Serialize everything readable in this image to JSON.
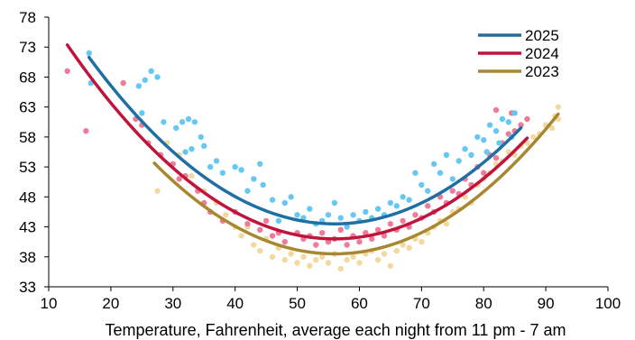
{
  "chart_data": {
    "type": "scatter",
    "title": "",
    "xlabel": "Temperature, Fahrenheit, average each night from 11 pm - 7 am",
    "ylabel": "",
    "xlim": [
      10,
      100
    ],
    "ylim": [
      33,
      78
    ],
    "x_ticks": [
      10,
      20,
      30,
      40,
      50,
      60,
      70,
      80,
      90,
      100
    ],
    "y_ticks": [
      33,
      38,
      43,
      48,
      53,
      58,
      63,
      68,
      73,
      78
    ],
    "grid": false,
    "legend_position": "top-right",
    "series": [
      {
        "name": "2025",
        "color": "#1f6fa3",
        "point_color": "#66c8f2",
        "fit": {
          "model": "quadratic",
          "a": 0.0178,
          "vertex_x": 56,
          "vertex_y": 43.5,
          "x_range": [
            16.5,
            86
          ]
        },
        "points": [
          [
            16.5,
            72
          ],
          [
            16.8,
            67
          ],
          [
            24.5,
            66.5
          ],
          [
            25.5,
            67.5
          ],
          [
            26.5,
            69
          ],
          [
            27.5,
            68
          ],
          [
            25,
            62
          ],
          [
            28.5,
            60.5
          ],
          [
            30.5,
            59.5
          ],
          [
            31.5,
            60.5
          ],
          [
            32.5,
            61
          ],
          [
            33.5,
            60.5
          ],
          [
            34.5,
            58
          ],
          [
            32,
            55.5
          ],
          [
            33,
            56
          ],
          [
            35,
            56.5
          ],
          [
            36,
            53
          ],
          [
            37,
            54
          ],
          [
            38,
            52
          ],
          [
            40,
            53
          ],
          [
            41,
            52.5
          ],
          [
            42,
            49
          ],
          [
            43,
            51
          ],
          [
            44,
            53.5
          ],
          [
            44.5,
            50
          ],
          [
            46,
            47.5
          ],
          [
            47,
            44
          ],
          [
            48,
            47
          ],
          [
            49,
            48
          ],
          [
            50,
            45
          ],
          [
            51,
            44.5
          ],
          [
            52,
            46
          ],
          [
            53,
            43.5
          ],
          [
            54,
            44
          ],
          [
            55,
            45
          ],
          [
            56,
            47
          ],
          [
            57,
            44.5
          ],
          [
            58,
            43
          ],
          [
            59,
            45
          ],
          [
            60,
            44
          ],
          [
            61,
            45.5
          ],
          [
            62,
            44.5
          ],
          [
            63,
            46
          ],
          [
            64,
            45
          ],
          [
            65,
            47
          ],
          [
            66,
            46.5
          ],
          [
            67,
            48
          ],
          [
            68,
            47.5
          ],
          [
            69,
            52
          ],
          [
            70,
            50
          ],
          [
            71,
            49
          ],
          [
            72,
            53.5
          ],
          [
            73,
            52
          ],
          [
            74,
            55
          ],
          [
            75,
            51
          ],
          [
            76,
            54
          ],
          [
            77,
            56
          ],
          [
            78,
            55
          ],
          [
            79,
            58
          ],
          [
            80,
            57.5
          ],
          [
            81,
            60
          ],
          [
            82,
            59
          ],
          [
            83,
            61
          ],
          [
            84,
            60.5
          ],
          [
            85,
            62
          ],
          [
            80.5,
            55.5
          ],
          [
            82.5,
            57
          ],
          [
            84.5,
            58
          ]
        ]
      },
      {
        "name": "2024",
        "color": "#c0143c",
        "point_color": "#ef7b9b",
        "fit": {
          "model": "quadratic",
          "a": 0.0175,
          "vertex_x": 56,
          "vertex_y": 41,
          "x_range": [
            13,
            87
          ]
        },
        "points": [
          [
            13,
            69
          ],
          [
            16,
            59
          ],
          [
            22,
            67
          ],
          [
            24,
            61
          ],
          [
            25,
            60
          ],
          [
            26,
            57
          ],
          [
            28,
            55
          ],
          [
            30,
            53.5
          ],
          [
            31,
            51
          ],
          [
            32,
            51.5
          ],
          [
            34,
            49
          ],
          [
            35,
            47
          ],
          [
            36,
            45.5
          ],
          [
            38,
            44
          ],
          [
            40,
            45.5
          ],
          [
            42,
            43.5
          ],
          [
            44,
            42.5
          ],
          [
            45,
            44
          ],
          [
            46,
            41.5
          ],
          [
            47,
            42
          ],
          [
            48,
            40.5
          ],
          [
            50,
            42
          ],
          [
            51,
            41
          ],
          [
            52,
            41.5
          ],
          [
            53,
            40
          ],
          [
            54,
            42
          ],
          [
            55,
            40.5
          ],
          [
            56,
            41
          ],
          [
            57,
            42.5
          ],
          [
            58,
            40
          ],
          [
            59,
            41.5
          ],
          [
            60,
            40.5
          ],
          [
            61,
            42
          ],
          [
            62,
            41
          ],
          [
            63,
            42.5
          ],
          [
            64,
            41.5
          ],
          [
            65,
            43.5
          ],
          [
            66,
            42.5
          ],
          [
            67,
            44
          ],
          [
            68,
            43
          ],
          [
            69,
            45
          ],
          [
            70,
            44.5
          ],
          [
            71,
            46.5
          ],
          [
            72,
            45.5
          ],
          [
            73,
            48
          ],
          [
            74,
            47
          ],
          [
            75,
            49
          ],
          [
            76,
            48.5
          ],
          [
            77,
            51
          ],
          [
            78,
            50
          ],
          [
            79,
            53
          ],
          [
            80,
            52
          ],
          [
            81,
            55
          ],
          [
            82,
            54.5
          ],
          [
            83,
            57
          ],
          [
            84,
            58.5
          ],
          [
            85,
            59
          ],
          [
            86,
            60
          ],
          [
            87,
            61
          ],
          [
            82,
            62.5
          ],
          [
            84.5,
            62
          ]
        ]
      },
      {
        "name": "2023",
        "color": "#a88730",
        "point_color": "#f2d9a0",
        "fit": {
          "model": "quadratic",
          "a": 0.018,
          "vertex_x": 56,
          "vertex_y": 38.5,
          "x_range": [
            27,
            92
          ]
        },
        "points": [
          [
            27.5,
            49
          ],
          [
            29,
            57
          ],
          [
            31,
            55
          ],
          [
            33,
            51.5
          ],
          [
            35,
            49
          ],
          [
            37,
            47
          ],
          [
            38.5,
            45
          ],
          [
            40,
            43
          ],
          [
            41,
            41.5
          ],
          [
            42,
            43
          ],
          [
            43,
            40
          ],
          [
            44,
            39
          ],
          [
            45,
            41
          ],
          [
            46,
            38
          ],
          [
            47,
            39.5
          ],
          [
            48,
            37.5
          ],
          [
            49,
            38.5
          ],
          [
            50,
            37
          ],
          [
            51,
            38
          ],
          [
            52,
            36.5
          ],
          [
            53,
            37.5
          ],
          [
            54,
            38
          ],
          [
            55,
            37
          ],
          [
            56,
            38.5
          ],
          [
            57,
            36
          ],
          [
            58,
            37.5
          ],
          [
            59,
            38
          ],
          [
            60,
            37
          ],
          [
            61,
            38.5
          ],
          [
            62,
            39
          ],
          [
            63,
            37.5
          ],
          [
            64,
            38.5
          ],
          [
            65,
            36.5
          ],
          [
            66,
            39
          ],
          [
            67,
            40
          ],
          [
            68,
            39.5
          ],
          [
            69,
            41
          ],
          [
            70,
            40.5
          ],
          [
            71,
            42
          ],
          [
            72,
            43
          ],
          [
            73,
            44
          ],
          [
            74,
            43.5
          ],
          [
            75,
            45.5
          ],
          [
            76,
            46
          ],
          [
            77,
            48
          ],
          [
            78,
            47
          ],
          [
            79,
            50
          ],
          [
            80,
            51
          ],
          [
            81,
            52
          ],
          [
            82,
            53.5
          ],
          [
            83,
            54
          ],
          [
            84,
            55.5
          ],
          [
            85,
            55
          ],
          [
            86,
            56.5
          ],
          [
            87,
            57
          ],
          [
            88,
            58
          ],
          [
            89,
            58.5
          ],
          [
            90,
            60
          ],
          [
            91,
            59.5
          ],
          [
            92,
            61
          ],
          [
            92,
            63
          ],
          [
            91.5,
            61.5
          ]
        ]
      }
    ]
  }
}
